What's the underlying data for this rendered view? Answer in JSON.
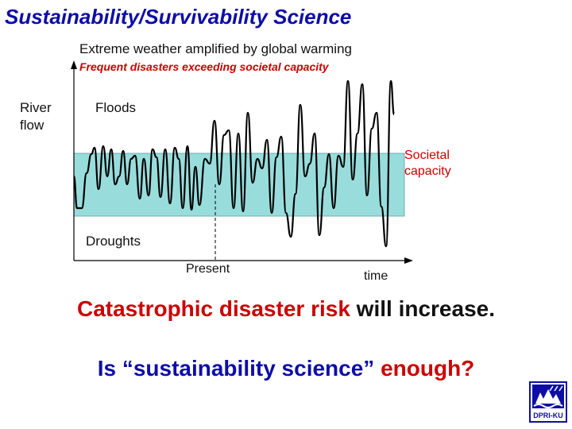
{
  "title": "Sustainability/Survivability Science",
  "subtitle1": "Extreme weather amplified by global warming",
  "subtitle2": "Frequent disasters exceeding societal capacity",
  "diagram": {
    "ylabel": "River flow",
    "floods_label": "Floods",
    "capacity_label": "Societal capacity",
    "droughts_label": "Droughts",
    "present_label": "Present",
    "xlabel": "time",
    "band_color": "#99dcdc",
    "line_color": "#000000"
  },
  "message1": {
    "highlight": "Catastrophic disaster risk",
    "rest": " will increase."
  },
  "message2": {
    "quote": "Is “sustainability science”",
    "tail": " enough?"
  },
  "logo": {
    "text": "DPRI-KU",
    "color": "#0d0da6"
  }
}
